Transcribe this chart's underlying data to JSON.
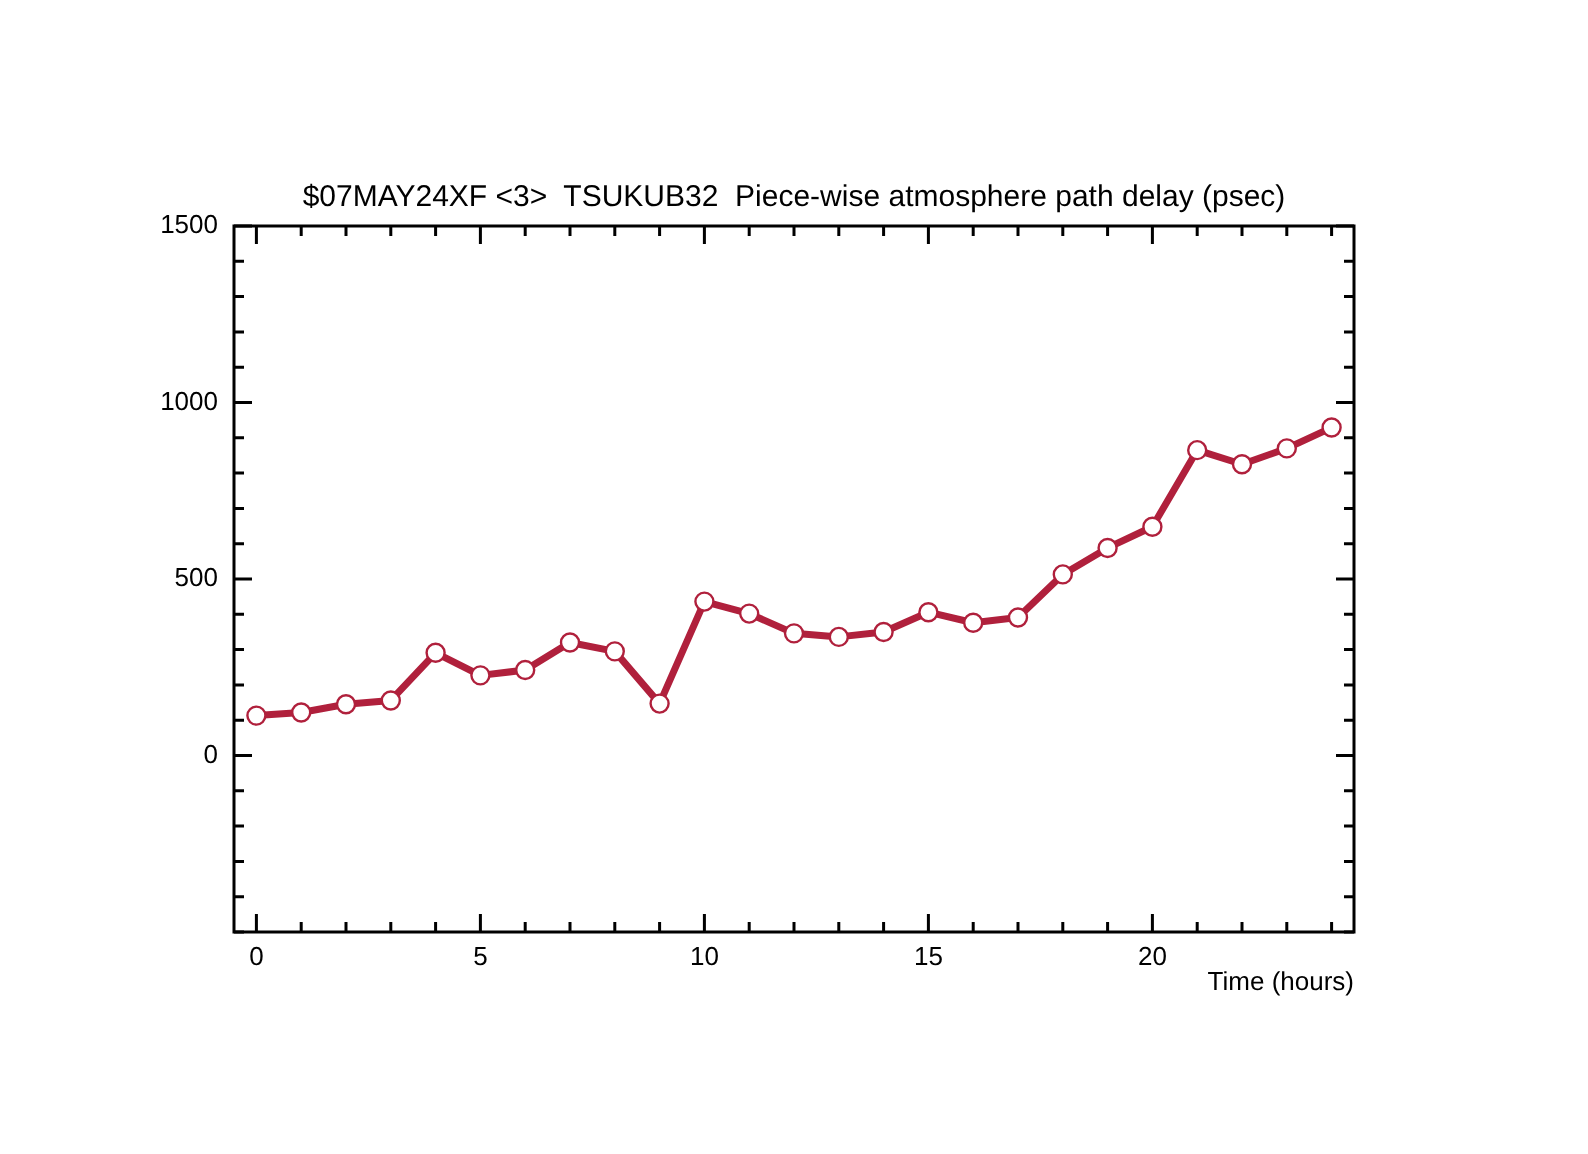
{
  "chart_data": {
    "type": "line",
    "title": "$07MAY24XF <3>  TSUKUB32  Piece-wise atmosphere path delay (psec)",
    "xlabel": "Time (hours)",
    "x": [
      0,
      1,
      2,
      3,
      4,
      5,
      6,
      7,
      8,
      9,
      10,
      11,
      12,
      13,
      14,
      15,
      16,
      17,
      18,
      19,
      20,
      21,
      22,
      23,
      24
    ],
    "series": [
      {
        "color": "#b0203c",
        "values": [
          113,
          122,
          145,
          156,
          291,
          227,
          242,
          320,
          295,
          147,
          436,
          402,
          346,
          336,
          350,
          406,
          376,
          391,
          513,
          588,
          648,
          865,
          825,
          870,
          929
        ]
      }
    ],
    "xlim": [
      -0.5,
      24.5
    ],
    "xticks": [
      0,
      {
        "value": 1,
        "label": null
      },
      {
        "value": 2,
        "label": null
      },
      {
        "value": 3,
        "label": null
      },
      {
        "value": 4,
        "label": null
      },
      5,
      {
        "value": 6,
        "label": null
      },
      {
        "value": 7,
        "label": null
      },
      {
        "value": 8,
        "label": null
      },
      {
        "value": 9,
        "label": null
      },
      10,
      {
        "value": 11,
        "label": null
      },
      {
        "value": 12,
        "label": null
      },
      {
        "value": 13,
        "label": null
      },
      {
        "value": 14,
        "label": null
      },
      15,
      {
        "value": 16,
        "label": null
      },
      {
        "value": 17,
        "label": null
      },
      {
        "value": 18,
        "label": null
      },
      {
        "value": 19,
        "label": null
      },
      20,
      {
        "value": 21,
        "label": null
      },
      {
        "value": 22,
        "label": null
      },
      {
        "value": 23,
        "label": null
      },
      {
        "value": 24,
        "label": null
      }
    ],
    "ylim": [
      -500,
      1500
    ],
    "yticks": [
      {
        "value": -500,
        "label": null
      },
      {
        "value": -400,
        "label": null
      },
      {
        "value": -300,
        "label": null
      },
      {
        "value": -200,
        "label": null
      },
      {
        "value": -100,
        "label": null
      },
      0,
      {
        "value": 100,
        "label": null
      },
      {
        "value": 200,
        "label": null
      },
      {
        "value": 300,
        "label": null
      },
      {
        "value": 400,
        "label": null
      },
      500,
      {
        "value": 600,
        "label": null
      },
      {
        "value": 700,
        "label": null
      },
      {
        "value": 800,
        "label": null
      },
      {
        "value": 900,
        "label": null
      },
      1000,
      {
        "value": 1100,
        "label": null
      },
      {
        "value": 1200,
        "label": null
      },
      {
        "value": 1300,
        "label": null
      },
      {
        "value": 1400,
        "label": null
      },
      1500
    ],
    "grid": false,
    "legend": false,
    "marker": "circle",
    "line_style": "solid"
  }
}
